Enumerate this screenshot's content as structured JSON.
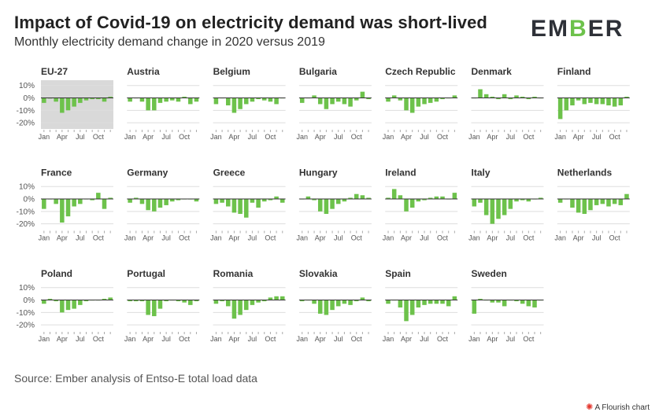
{
  "header": {
    "title": "Impact of Covid-19 on electricity demand was short-lived",
    "subtitle": "Monthly electricity demand change in 2020 versus 2019",
    "logo_text": "EMBER"
  },
  "footer": {
    "source": "Source: Ember analysis of Entso-E total load data",
    "flourish_label": "A Flourish chart",
    "flourish_icon": "✺"
  },
  "colors": {
    "bar": "#6dc24b",
    "highlight_bg": "#d9d9d9",
    "logo_accent": "#6dc24b"
  },
  "chart_data": {
    "type": "bar",
    "title": "Impact of Covid-19 on electricity demand was short-lived",
    "subtitle": "Monthly electricity demand change in 2020 versus 2019",
    "unit": "%",
    "ylim": [
      -25,
      13
    ],
    "yticks": [
      10,
      0,
      -10,
      -20
    ],
    "ytick_labels": [
      "10%",
      "0%",
      "-10%",
      "-20%"
    ],
    "xtick_labels": [
      "Jan",
      "Apr",
      "Jul",
      "Oct"
    ],
    "xtick_months": [
      1,
      4,
      7,
      10
    ],
    "months": [
      "Jan",
      "Feb",
      "Mar",
      "Apr",
      "May",
      "Jun",
      "Jul",
      "Aug",
      "Sep",
      "Oct",
      "Nov",
      "Dec"
    ],
    "highlighted_series": "EU-27",
    "series": [
      {
        "name": "EU-27",
        "values": [
          -4,
          -0.5,
          -3,
          -12,
          -10,
          -7,
          -4,
          -2,
          -1,
          -1,
          -3,
          1
        ]
      },
      {
        "name": "Austria",
        "values": [
          -3,
          0,
          -3,
          -10,
          -10,
          -4,
          -3,
          -2,
          -3,
          1,
          -5,
          -3
        ]
      },
      {
        "name": "Belgium",
        "values": [
          -5,
          0,
          -6,
          -12,
          -9,
          -5,
          -3,
          -1,
          -2,
          -3,
          -5,
          0
        ]
      },
      {
        "name": "Bulgaria",
        "values": [
          -4,
          0,
          2,
          -5,
          -9,
          -5,
          -3,
          -5,
          -7,
          -2,
          5,
          -1
        ]
      },
      {
        "name": "Czech Republic",
        "values": [
          -3,
          2,
          -2,
          -10,
          -12,
          -7,
          -5,
          -4,
          -3,
          -1,
          0,
          2
        ]
      },
      {
        "name": "Denmark",
        "values": [
          0,
          7,
          3,
          1,
          -1,
          3,
          -1,
          2,
          1,
          -1,
          1,
          0
        ]
      },
      {
        "name": "Finland",
        "values": [
          -17,
          -10,
          -6,
          -2,
          -5,
          -4,
          -5,
          -5,
          -6,
          -7,
          -6,
          1
        ]
      },
      {
        "name": "France",
        "values": [
          -8,
          0,
          -4,
          -19,
          -14,
          -6,
          -4,
          0,
          -1,
          5,
          -8,
          1
        ]
      },
      {
        "name": "Germany",
        "values": [
          -3,
          1,
          -4,
          -9,
          -10,
          -7,
          -5,
          -2,
          -1,
          0,
          0,
          -2
        ]
      },
      {
        "name": "Greece",
        "values": [
          -4,
          -3,
          -6,
          -11,
          -12,
          -15,
          -3,
          -7,
          -2,
          -1,
          2,
          -3
        ]
      },
      {
        "name": "Hungary",
        "values": [
          0,
          2,
          -1,
          -10,
          -12,
          -8,
          -4,
          -2,
          1,
          4,
          3,
          1
        ]
      },
      {
        "name": "Ireland",
        "values": [
          1,
          8,
          3,
          -10,
          -7,
          -2,
          -1,
          1,
          2,
          2,
          0,
          5
        ]
      },
      {
        "name": "Italy",
        "values": [
          -6,
          -3,
          -13,
          -20,
          -16,
          -13,
          -8,
          -2,
          -1,
          -2,
          0,
          1
        ]
      },
      {
        "name": "Netherlands",
        "values": [
          -3,
          0,
          -7,
          -11,
          -12,
          -9,
          -5,
          -4,
          -6,
          -4,
          -5,
          4
        ]
      },
      {
        "name": "Poland",
        "values": [
          -3,
          1,
          -1,
          -10,
          -8,
          -7,
          -4,
          -1,
          0,
          0,
          1,
          2
        ]
      },
      {
        "name": "Portugal",
        "values": [
          -1,
          -1,
          -1,
          -12,
          -13,
          -7,
          -1,
          0,
          -1,
          -2,
          -4,
          -1
        ]
      },
      {
        "name": "Romania",
        "values": [
          -3,
          -1,
          -5,
          -15,
          -12,
          -8,
          -4,
          -2,
          -1,
          2,
          3,
          3
        ]
      },
      {
        "name": "Slovakia",
        "values": [
          -1,
          0,
          -3,
          -11,
          -12,
          -8,
          -5,
          -3,
          -4,
          -1,
          2,
          -1
        ]
      },
      {
        "name": "Spain",
        "values": [
          -3,
          0,
          -6,
          -17,
          -12,
          -6,
          -4,
          -3,
          -3,
          -3,
          -5,
          3
        ]
      },
      {
        "name": "Sweden",
        "values": [
          -11,
          1,
          0,
          -2,
          -2,
          -5,
          0,
          -1,
          -3,
          -5,
          -6,
          0
        ]
      }
    ]
  }
}
